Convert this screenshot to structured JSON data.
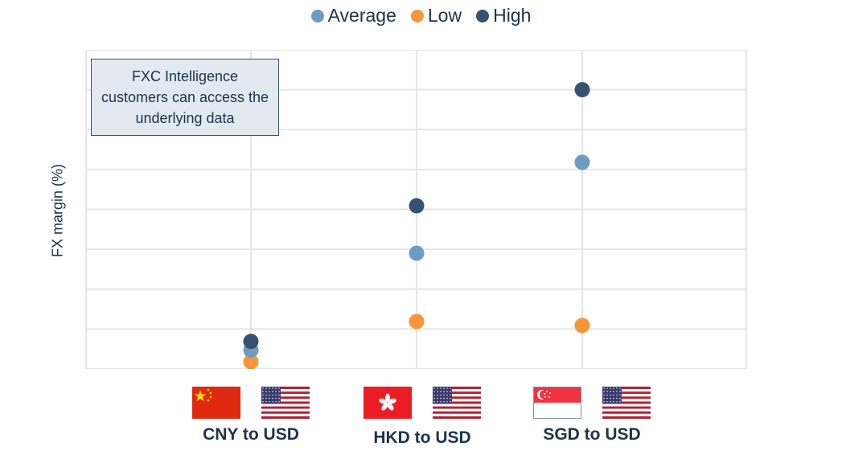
{
  "legend": [
    {
      "label": "Average",
      "color": "#6f9bc3"
    },
    {
      "label": "Low",
      "color": "#f7953b"
    },
    {
      "label": "High",
      "color": "#355371"
    }
  ],
  "note": "FXC Intelligence customers can access the underlying data",
  "categories": [
    {
      "label": "CNY to USD",
      "from_flag": "china-flag",
      "to_flag": "us-flag"
    },
    {
      "label": "HKD to USD",
      "from_flag": "hong-kong-flag",
      "to_flag": "us-flag"
    },
    {
      "label": "SGD to USD",
      "from_flag": "singapore-flag",
      "to_flag": "us-flag"
    }
  ],
  "chart_data": {
    "type": "scatter",
    "title": "",
    "xlabel": "",
    "ylabel": "FX margin (%)",
    "categories": [
      "CNY to USD",
      "HKD to USD",
      "SGD to USD"
    ],
    "series": [
      {
        "name": "Average",
        "color": "#6f9bc3",
        "values": [
          0.47,
          2.9,
          5.18
        ]
      },
      {
        "name": "Low",
        "color": "#f7953b",
        "values": [
          0.18,
          1.19,
          1.09
        ]
      },
      {
        "name": "High",
        "color": "#355371",
        "values": [
          0.69,
          4.09,
          7.0
        ]
      }
    ],
    "ylim": [
      0,
      8
    ],
    "y_units_note": "No y-axis tick labels shown; values expressed in gridline units (8 equal intervals)",
    "grid": true,
    "legend_position": "top"
  }
}
